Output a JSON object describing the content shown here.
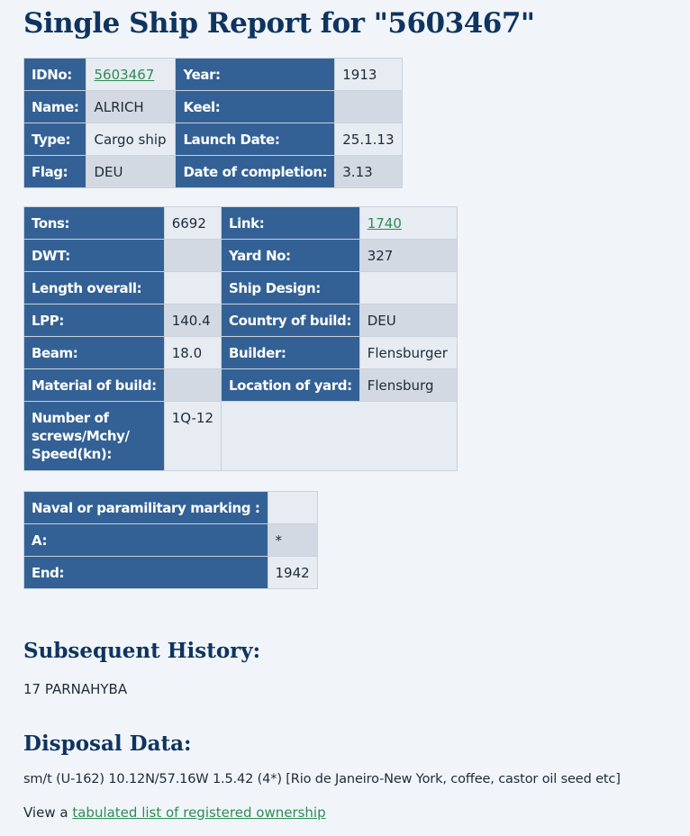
{
  "title": "Single Ship Report for \"5603467\"",
  "table1": {
    "idno_label": "IDNo:",
    "idno_value": "5603467",
    "year_label": "Year:",
    "year_value": "1913",
    "name_label": "Name:",
    "name_value": "ALRICH",
    "keel_label": "Keel:",
    "keel_value": "",
    "type_label": "Type:",
    "type_value": "Cargo ship",
    "launch_label": "Launch Date:",
    "launch_value": "25.1.13",
    "flag_label": "Flag:",
    "flag_value": "DEU",
    "completion_label": "Date of completion:",
    "completion_value": "3.13"
  },
  "table2": {
    "tons_label": "Tons:",
    "tons_value": "6692",
    "link_label": "Link:",
    "link_value": "1740",
    "dwt_label": "DWT:",
    "dwt_value": "",
    "yard_no_label": "Yard No:",
    "yard_no_value": "327",
    "length_label": "Length overall:",
    "length_value": "",
    "design_label": "Ship Design:",
    "design_value": "",
    "lpp_label": "LPP:",
    "lpp_value": "140.4",
    "country_label": "Country of build:",
    "country_value": "DEU",
    "beam_label": "Beam:",
    "beam_value": "18.0",
    "builder_label": "Builder:",
    "builder_value": "Flensburger",
    "material_label": "Material of build:",
    "material_value": "",
    "location_label": "Location of yard:",
    "location_value": "Flensburg",
    "screws_label_1": "Number of",
    "screws_label_2": "screws/Mchy/",
    "screws_label_3": "Speed(kn):",
    "screws_value": "1Q-12"
  },
  "table3": {
    "naval_label": "Naval or paramilitary marking :",
    "naval_value": "",
    "a_label": "A:",
    "a_value": "*",
    "end_label": "End:",
    "end_value": "1942"
  },
  "history": {
    "heading": "Subsequent History:",
    "text": "17 PARNAHYBA"
  },
  "disposal": {
    "heading": "Disposal Data:",
    "text": "sm/t (U-162) 10.12N/57.16W 1.5.42 (4*) [Rio de Janeiro-New York, coffee, castor oil seed etc]"
  },
  "ownership": {
    "prefix": "View a",
    "link_text": "tabulated list of registered ownership"
  }
}
